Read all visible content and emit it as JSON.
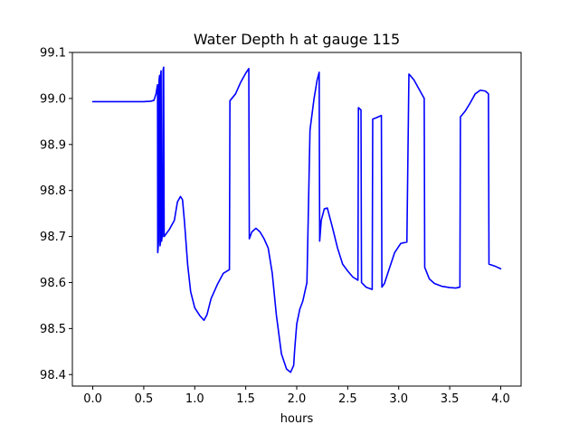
{
  "chart_data": {
    "type": "line",
    "title": "Water Depth h at gauge 115",
    "xlabel": "hours",
    "ylabel": "",
    "xlim": [
      -0.2,
      4.2
    ],
    "ylim": [
      98.375,
      99.1
    ],
    "xticks": [
      0.0,
      0.5,
      1.0,
      1.5,
      2.0,
      2.5,
      3.0,
      3.5,
      4.0
    ],
    "xtick_labels": [
      "0.0",
      "0.5",
      "1.0",
      "1.5",
      "2.0",
      "2.5",
      "3.0",
      "3.5",
      "4.0"
    ],
    "yticks": [
      98.4,
      98.5,
      98.6,
      98.7,
      98.8,
      98.9,
      99.0,
      99.1
    ],
    "ytick_labels": [
      "98.4",
      "98.5",
      "98.6",
      "98.7",
      "98.8",
      "98.9",
      "99.0",
      "99.1"
    ],
    "grid": false,
    "series": [
      {
        "color": "#0000ff",
        "x": [
          0.0,
          0.2,
          0.35,
          0.5,
          0.57,
          0.6,
          0.62,
          0.635,
          0.637,
          0.64,
          0.645,
          0.65,
          0.655,
          0.66,
          0.665,
          0.667,
          0.67,
          0.675,
          0.68,
          0.685,
          0.69,
          0.695,
          0.7,
          0.75,
          0.8,
          0.83,
          0.86,
          0.88,
          0.9,
          0.93,
          0.96,
          1.0,
          1.05,
          1.09,
          1.12,
          1.16,
          1.22,
          1.28,
          1.34,
          1.345,
          1.4,
          1.45,
          1.5,
          1.53,
          1.535,
          1.56,
          1.6,
          1.64,
          1.68,
          1.72,
          1.76,
          1.8,
          1.85,
          1.9,
          1.94,
          1.97,
          1.98,
          2.0,
          2.03,
          2.06,
          2.1,
          2.13,
          2.135,
          2.17,
          2.2,
          2.22,
          2.225,
          2.24,
          2.27,
          2.3,
          2.32,
          2.35,
          2.4,
          2.45,
          2.5,
          2.55,
          2.6,
          2.605,
          2.63,
          2.635,
          2.68,
          2.74,
          2.745,
          2.78,
          2.8,
          2.83,
          2.835,
          2.86,
          2.9,
          2.96,
          3.02,
          3.08,
          3.1,
          3.105,
          3.15,
          3.2,
          3.25,
          3.255,
          3.3,
          3.35,
          3.42,
          3.5,
          3.56,
          3.6,
          3.605,
          3.65,
          3.7,
          3.75,
          3.8,
          3.85,
          3.88,
          3.885,
          3.95,
          4.0
        ],
        "values": [
          98.993,
          98.993,
          98.993,
          98.993,
          98.994,
          98.996,
          99.01,
          99.03,
          98.665,
          98.672,
          98.69,
          99.04,
          99.05,
          98.68,
          98.69,
          99.055,
          99.06,
          98.69,
          98.7,
          98.7,
          99.062,
          99.068,
          98.7,
          98.715,
          98.735,
          98.775,
          98.787,
          98.78,
          98.73,
          98.64,
          98.58,
          98.545,
          98.528,
          98.518,
          98.53,
          98.565,
          98.595,
          98.62,
          98.628,
          98.995,
          99.01,
          99.035,
          99.055,
          99.065,
          98.695,
          98.71,
          98.718,
          98.71,
          98.695,
          98.675,
          98.62,
          98.53,
          98.445,
          98.412,
          98.405,
          98.42,
          98.455,
          98.51,
          98.542,
          98.56,
          98.6,
          98.931,
          98.94,
          99.0,
          99.04,
          99.057,
          98.69,
          98.735,
          98.76,
          98.762,
          98.745,
          98.72,
          98.675,
          98.64,
          98.625,
          98.612,
          98.605,
          98.98,
          98.975,
          98.6,
          98.59,
          98.585,
          98.955,
          98.958,
          98.96,
          98.963,
          98.59,
          98.598,
          98.625,
          98.665,
          98.685,
          98.688,
          99.053,
          99.052,
          99.04,
          99.02,
          99.0,
          98.633,
          98.608,
          98.598,
          98.592,
          98.589,
          98.588,
          98.59,
          98.96,
          98.972,
          98.99,
          99.01,
          99.018,
          99.016,
          99.01,
          98.64,
          98.635,
          98.63
        ]
      }
    ]
  }
}
